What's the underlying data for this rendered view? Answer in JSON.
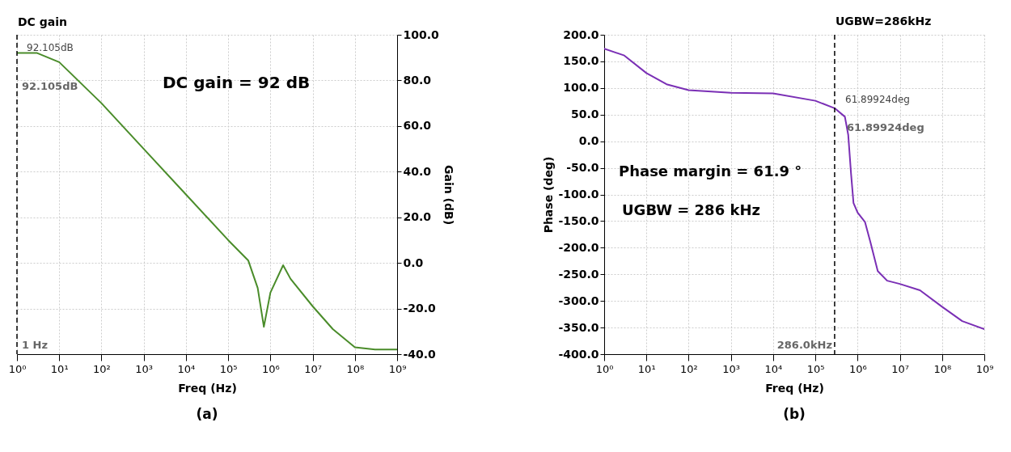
{
  "chart_data": [
    {
      "type": "line",
      "xlabel": "Freq (Hz)",
      "y2label": "Gain (dB)",
      "log": "x",
      "grid": true,
      "x": [
        1,
        3,
        10,
        100,
        1000,
        10000,
        100000,
        300000,
        500000,
        700000,
        1000000,
        2000000,
        3000000,
        10000000,
        30000000,
        100000000,
        300000000,
        1000000000
      ],
      "series": [
        {
          "color": "#4a8c2a",
          "axis": "y2",
          "values": [
            92,
            92,
            88,
            70,
            50,
            30,
            10,
            1,
            -11,
            -28,
            -13,
            -1,
            -7,
            -19,
            -29,
            -37,
            -38,
            -38
          ]
        }
      ],
      "xlim": [
        1,
        1000000000
      ],
      "xticks": [
        {
          "value": 1,
          "label": "10⁰"
        },
        {
          "value": 10,
          "label": "10¹"
        },
        {
          "value": 100,
          "label": "10²"
        },
        {
          "value": 1000,
          "label": "10³"
        },
        {
          "value": 10000,
          "label": "10⁴"
        },
        {
          "value": 100000,
          "label": "10⁵"
        },
        {
          "value": 1000000,
          "label": "10⁶"
        },
        {
          "value": 10000000,
          "label": "10⁷"
        },
        {
          "value": 100000000,
          "label": "10⁸"
        },
        {
          "value": 1000000000,
          "label": "10⁹"
        }
      ],
      "y2lim": [
        -40,
        100
      ],
      "y2ticks": [
        {
          "value": -40,
          "label": "-40.0"
        },
        {
          "value": -20,
          "label": "-20.0"
        },
        {
          "value": 0,
          "label": "0.0"
        },
        {
          "value": 20,
          "label": "20.0"
        },
        {
          "value": 40,
          "label": "40.0"
        },
        {
          "value": 60,
          "label": "60.0"
        },
        {
          "value": 80,
          "label": "80.0"
        },
        {
          "value": 100,
          "label": "100.0"
        }
      ],
      "ref_lines": [
        {
          "axis": "x",
          "value": 1,
          "label": "DC gain",
          "color": "#000000",
          "line_style": "dashed"
        }
      ],
      "annotations": [
        "92.105dB",
        "92.105dB",
        "DC gain = 92 dB",
        "1 Hz",
        "(a)"
      ]
    },
    {
      "type": "line",
      "xlabel": "Freq (Hz)",
      "ylabel": "Phase (deg)",
      "log": "x",
      "grid": true,
      "x": [
        1,
        3,
        10,
        30,
        100,
        1000,
        10000,
        100000,
        286000,
        500000,
        600000,
        700000,
        800000,
        1000000,
        1500000,
        2000000,
        3000000,
        5000000,
        10000000,
        30000000,
        100000000,
        300000000,
        1000000000
      ],
      "series": [
        {
          "color": "#7a2fb5",
          "values": [
            174,
            161,
            128,
            107,
            96,
            91,
            90,
            76,
            62,
            46,
            12,
            -61,
            -116,
            -134,
            -152,
            -189,
            -244,
            -262,
            -268,
            -280,
            -311,
            -338,
            -353
          ]
        }
      ],
      "xlim": [
        1,
        1000000000
      ],
      "xticks": [
        {
          "value": 1,
          "label": "10⁰"
        },
        {
          "value": 10,
          "label": "10¹"
        },
        {
          "value": 100,
          "label": "10²"
        },
        {
          "value": 1000,
          "label": "10³"
        },
        {
          "value": 10000,
          "label": "10⁴"
        },
        {
          "value": 100000,
          "label": "10⁵"
        },
        {
          "value": 1000000,
          "label": "10⁶"
        },
        {
          "value": 10000000,
          "label": "10⁷"
        },
        {
          "value": 100000000,
          "label": "10⁸"
        },
        {
          "value": 1000000000,
          "label": "10⁹"
        }
      ],
      "ylim": [
        -400,
        200
      ],
      "yticks": [
        {
          "value": -400,
          "label": "-400.0"
        },
        {
          "value": -350,
          "label": "-350.0"
        },
        {
          "value": -300,
          "label": "-300.0"
        },
        {
          "value": -250,
          "label": "-250.0"
        },
        {
          "value": -200,
          "label": "-200.0"
        },
        {
          "value": -150,
          "label": "-150.0"
        },
        {
          "value": -100,
          "label": "-100.0"
        },
        {
          "value": -50,
          "label": "-50.0"
        },
        {
          "value": 0,
          "label": "0.0"
        },
        {
          "value": 50,
          "label": "50.0"
        },
        {
          "value": 100,
          "label": "100.0"
        },
        {
          "value": 150,
          "label": "150.0"
        },
        {
          "value": 200,
          "label": "200.0"
        }
      ],
      "ref_lines": [
        {
          "axis": "x",
          "value": 286000,
          "color": "#000000",
          "line_style": "dashed"
        }
      ],
      "annotations": [
        "61.89924deg",
        "61.89924deg",
        "Phase margin = 61.9 °",
        "UGBW = 286 kHz",
        "286.0kHz",
        "(b)",
        "UGBW=286kHz"
      ]
    }
  ]
}
